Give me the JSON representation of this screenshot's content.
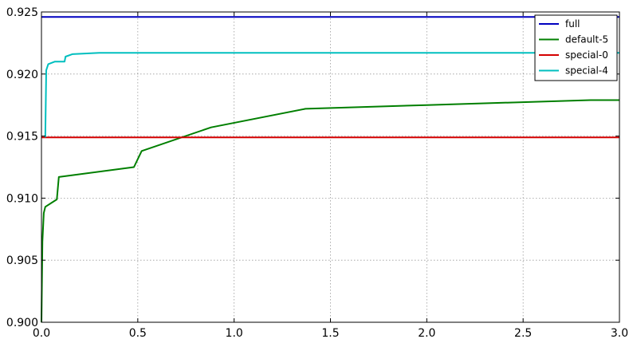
{
  "chart_data": {
    "type": "line",
    "title": "",
    "xlabel": "",
    "ylabel": "",
    "xlim": [
      0.0,
      3.0
    ],
    "ylim": [
      0.9,
      0.925
    ],
    "x_ticks": [
      "0.0",
      "0.5",
      "1.0",
      "1.5",
      "2.0",
      "2.5",
      "3.0"
    ],
    "y_ticks": [
      "0.900",
      "0.905",
      "0.910",
      "0.915",
      "0.920",
      "0.925"
    ],
    "grid": true,
    "legend_position": "top-right",
    "series": [
      {
        "name": "full",
        "color": "#0000bf",
        "points": [
          [
            0.0,
            0.9246
          ],
          [
            3.0,
            0.9246
          ]
        ]
      },
      {
        "name": "default-5",
        "color": "#007f00",
        "points": [
          [
            0.0,
            0.9
          ],
          [
            0.005,
            0.9065
          ],
          [
            0.012,
            0.9088
          ],
          [
            0.02,
            0.9093
          ],
          [
            0.08,
            0.9099
          ],
          [
            0.09,
            0.9117
          ],
          [
            0.48,
            0.9125
          ],
          [
            0.52,
            0.9138
          ],
          [
            0.88,
            0.9157
          ],
          [
            1.37,
            0.9172
          ],
          [
            2.0,
            0.9175
          ],
          [
            2.85,
            0.9179
          ],
          [
            3.0,
            0.9179
          ]
        ]
      },
      {
        "name": "special-0",
        "color": "#d40000",
        "points": [
          [
            0.0,
            0.9149
          ],
          [
            3.0,
            0.9149
          ]
        ]
      },
      {
        "name": "special-4",
        "color": "#00bfbf",
        "points": [
          [
            0.02,
            0.9149
          ],
          [
            0.025,
            0.9203
          ],
          [
            0.035,
            0.9208
          ],
          [
            0.07,
            0.921
          ],
          [
            0.12,
            0.921
          ],
          [
            0.125,
            0.9214
          ],
          [
            0.16,
            0.9216
          ],
          [
            0.3,
            0.9217
          ],
          [
            3.0,
            0.9217
          ]
        ]
      }
    ]
  }
}
